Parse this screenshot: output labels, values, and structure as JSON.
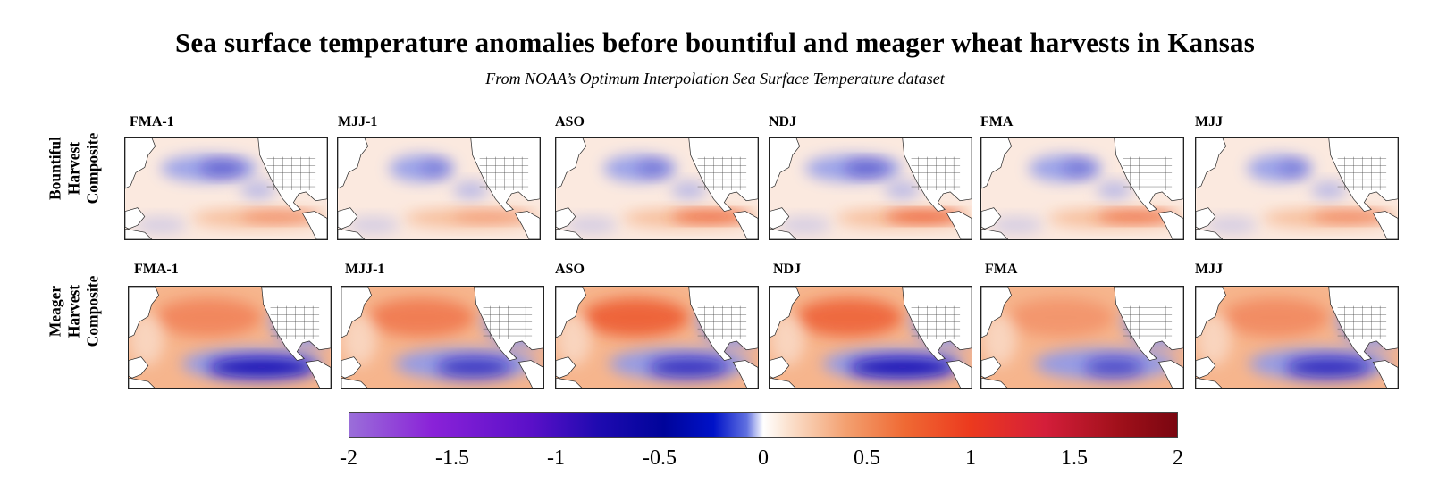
{
  "title": "Sea surface temperature anomalies before bountiful and meager wheat harvests in Kansas",
  "subtitle": "From NOAA’s Optimum Interpolation Sea Surface Temperature dataset",
  "rows": [
    {
      "label_lines": [
        "Bountiful",
        "Harvest",
        "Composite"
      ]
    },
    {
      "label_lines": [
        "Meager",
        "Harvest",
        "Composite"
      ]
    }
  ],
  "panel_titles": [
    "FMA-1",
    "MJJ-1",
    "ASO",
    "NDJ",
    "FMA",
    "MJJ"
  ],
  "colorbar": {
    "min": -2,
    "max": 2,
    "tick_labels": [
      "-2",
      "-1.5",
      "-1",
      "-0.5",
      "0",
      "0.5",
      "1",
      "1.5",
      "2"
    ]
  },
  "colors": {
    "negative_strong": "#1a10b4",
    "negative_weak": "#8f9aea",
    "neutral": "#fbe9df",
    "positive_weak": "#f6b58d",
    "positive_strong": "#ec5126",
    "land": "#ffffff"
  }
}
